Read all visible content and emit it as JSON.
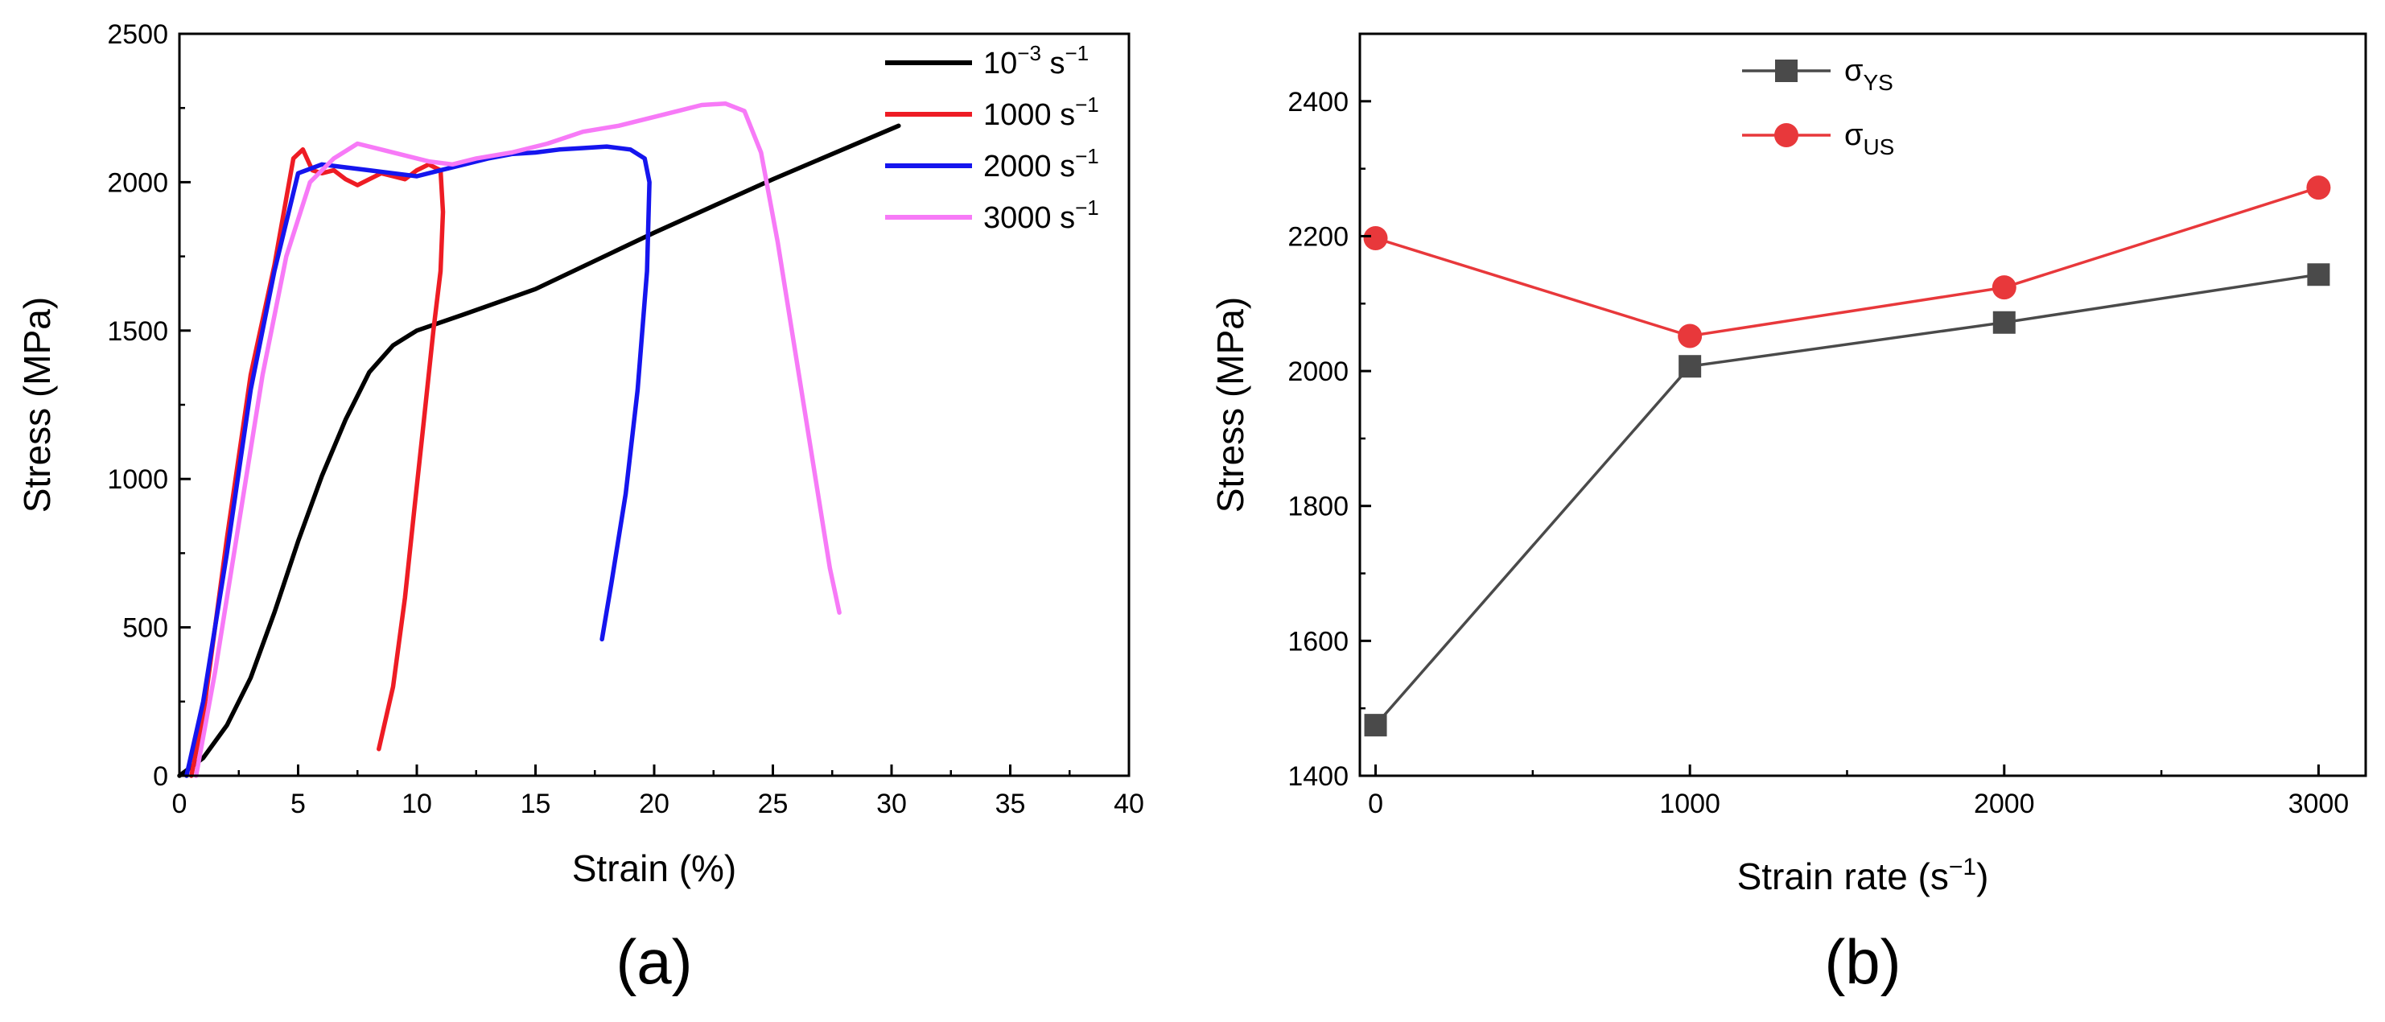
{
  "chart_data": [
    {
      "panel": "(a)",
      "type": "line",
      "xlabel": "Strain (%)",
      "ylabel": "Stress (MPa)",
      "xlim": [
        0,
        40
      ],
      "ylim": [
        0,
        2500
      ],
      "xticks": [
        "0",
        "5",
        "10",
        "15",
        "20",
        "25",
        "30",
        "35",
        "40"
      ],
      "yticks": [
        "0",
        "500",
        "1000",
        "1500",
        "2000",
        "2500"
      ],
      "legend_position": "top-right",
      "series": [
        {
          "name": "10⁻³ s⁻¹",
          "legend_main": "10",
          "legend_sup": "−3",
          "legend_unit": " s",
          "legend_unit_sup": "−1",
          "color": "#000000",
          "x": [
            0,
            1,
            2,
            3,
            4,
            5,
            6,
            7,
            8,
            9,
            10,
            12,
            15,
            20,
            25,
            30.3
          ],
          "y": [
            0,
            60,
            170,
            330,
            550,
            790,
            1010,
            1200,
            1360,
            1450,
            1500,
            1555,
            1640,
            1830,
            2010,
            2190
          ]
        },
        {
          "name": "1000 s⁻¹",
          "legend_main": "1000 s",
          "legend_unit_sup": "−1",
          "color": "#ee1c24",
          "x": [
            0.5,
            1,
            2,
            3,
            4,
            4.8,
            5.2,
            5.6,
            6,
            6.5,
            7,
            7.5,
            8,
            8.5,
            9,
            9.5,
            10,
            10.5,
            11,
            11.1,
            11,
            10.7,
            10.3,
            9.9,
            9.5,
            9,
            8.4
          ],
          "y": [
            0,
            200,
            800,
            1350,
            1720,
            2080,
            2110,
            2040,
            2030,
            2040,
            2010,
            1990,
            2010,
            2030,
            2020,
            2010,
            2040,
            2060,
            2040,
            1900,
            1700,
            1500,
            1200,
            900,
            600,
            300,
            90
          ]
        },
        {
          "name": "2000 s⁻¹",
          "legend_main": "2000 s",
          "legend_unit_sup": "−1",
          "color": "#1515ee",
          "x": [
            0.3,
            1,
            2,
            3,
            4,
            5,
            6,
            7,
            8,
            9,
            10,
            11,
            12,
            13,
            14,
            15,
            16,
            17,
            18,
            19,
            19.6,
            19.8,
            19.7,
            19.3,
            18.8,
            18.2,
            17.8
          ],
          "y": [
            0,
            250,
            750,
            1300,
            1700,
            2030,
            2060,
            2050,
            2040,
            2030,
            2020,
            2040,
            2060,
            2080,
            2095,
            2100,
            2110,
            2115,
            2120,
            2110,
            2080,
            2000,
            1700,
            1300,
            950,
            650,
            460
          ]
        },
        {
          "name": "3000 s⁻¹",
          "legend_main": "3000 s",
          "legend_unit_sup": "−1",
          "color": "#f77af7",
          "x": [
            0.7,
            1.5,
            2.5,
            3.5,
            4.5,
            5.5,
            6.5,
            7.5,
            8.5,
            9.5,
            10.5,
            11.5,
            12.5,
            14,
            15.5,
            17,
            18.5,
            20,
            21,
            22,
            23,
            23.8,
            24.5,
            25.2,
            26,
            26.8,
            27.4,
            27.8
          ],
          "y": [
            0,
            350,
            850,
            1350,
            1750,
            2000,
            2080,
            2130,
            2110,
            2090,
            2070,
            2060,
            2080,
            2100,
            2130,
            2170,
            2190,
            2220,
            2240,
            2260,
            2265,
            2240,
            2100,
            1800,
            1400,
            1000,
            700,
            550
          ]
        }
      ]
    },
    {
      "panel": "(b)",
      "type": "line",
      "xlabel": "Strain rate (s",
      "xlabel_sup": "−1",
      "xlabel_end": ")",
      "ylabel": "Stress (MPa)",
      "xlim": [
        -50,
        3150
      ],
      "ylim": [
        1400,
        2500
      ],
      "xticks": [
        "0",
        "1000",
        "2000",
        "3000"
      ],
      "xtick_values": [
        0,
        1000,
        2000,
        3000
      ],
      "yticks": [
        "1400",
        "1600",
        "1800",
        "2000",
        "2200",
        "2400"
      ],
      "legend_position": "top-left",
      "series": [
        {
          "name": "σYS",
          "legend_main": "σ",
          "legend_sub": "YS",
          "color": "#4a4a4a",
          "marker": "square",
          "x": [
            0,
            1000,
            2000,
            3000
          ],
          "y": [
            1475,
            2007,
            2072,
            2143
          ]
        },
        {
          "name": "σUS",
          "legend_main": "σ",
          "legend_sub": "US",
          "color": "#e8383b",
          "marker": "circle",
          "x": [
            0,
            1000,
            2000,
            3000
          ],
          "y": [
            2197,
            2052,
            2124,
            2272
          ]
        }
      ]
    }
  ]
}
